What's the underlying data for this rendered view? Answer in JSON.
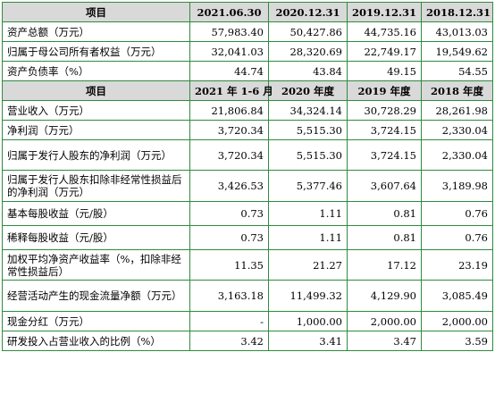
{
  "balance": {
    "headers": [
      "项目",
      "2021.06.30",
      "2020.12.31",
      "2019.12.31",
      "2018.12.31"
    ],
    "rows": [
      {
        "label": "资产总额（万元）",
        "values": [
          "57,983.40",
          "50,427.86",
          "44,735.16",
          "43,013.03"
        ]
      },
      {
        "label": "归属于母公司所有者权益（万元）",
        "values": [
          "32,041.03",
          "28,320.69",
          "22,749.17",
          "19,549.62"
        ]
      },
      {
        "label": "资产负债率（%）",
        "values": [
          "44.74",
          "43.84",
          "49.15",
          "54.55"
        ]
      }
    ]
  },
  "income": {
    "headers": [
      "项目",
      "2021 年 1-6 月",
      "2020 年度",
      "2019 年度",
      "2018 年度"
    ],
    "rows": [
      {
        "label": "营业收入（万元）",
        "values": [
          "21,806.84",
          "34,324.14",
          "30,728.29",
          "28,261.98"
        ]
      },
      {
        "label": "净利润（万元）",
        "values": [
          "3,720.34",
          "5,515.30",
          "3,724.15",
          "2,330.04"
        ]
      },
      {
        "label": "归属于发行人股东的净利润（万元）",
        "values": [
          "3,720.34",
          "5,515.30",
          "3,724.15",
          "2,330.04"
        ]
      },
      {
        "label": "归属于发行人股东扣除非经常性损益后的净利润（万元）",
        "values": [
          "3,426.53",
          "5,377.46",
          "3,607.64",
          "3,189.98"
        ]
      },
      {
        "label": "基本每股收益（元/股）",
        "values": [
          "0.73",
          "1.11",
          "0.81",
          "0.76"
        ]
      },
      {
        "label": "稀释每股收益（元/股）",
        "values": [
          "0.73",
          "1.11",
          "0.81",
          "0.76"
        ]
      },
      {
        "label": "加权平均净资产收益率（%，扣除非经常性损益后）",
        "values": [
          "11.35",
          "21.27",
          "17.12",
          "23.19"
        ]
      },
      {
        "label": "经营活动产生的现金流量净额（万元）",
        "values": [
          "3,163.18",
          "11,499.32",
          "4,129.90",
          "3,085.49"
        ]
      },
      {
        "label": "现金分红（万元）",
        "values": [
          "-",
          "1,000.00",
          "2,000.00",
          "2,000.00"
        ]
      },
      {
        "label": "研发投入占营业收入的比例（%）",
        "values": [
          "3.42",
          "3.41",
          "3.47",
          "3.59"
        ]
      }
    ]
  }
}
